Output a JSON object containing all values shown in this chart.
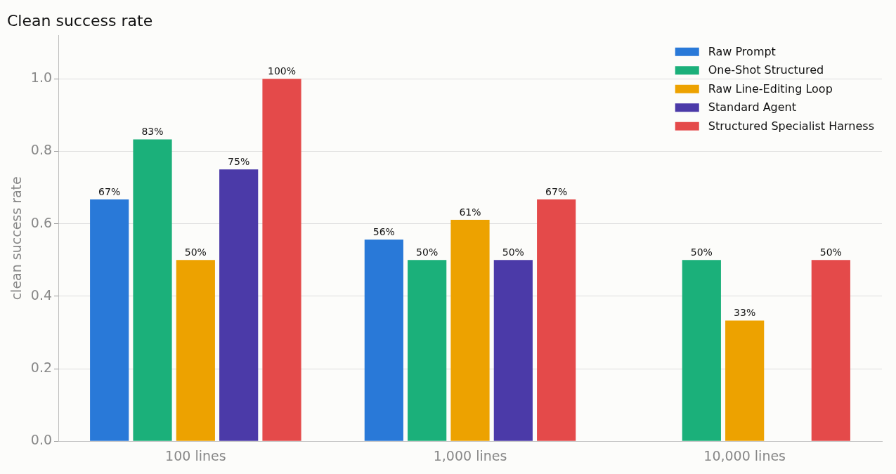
{
  "chart_data": {
    "type": "bar",
    "title": "Clean success rate",
    "ylabel": "clean success rate",
    "categories": [
      "100 lines",
      "1,000 lines",
      "10,000 lines"
    ],
    "series": [
      {
        "name": "Raw Prompt",
        "color": "#2979d8",
        "values": [
          0.667,
          0.556,
          null
        ],
        "value_labels": [
          "67%",
          "56%",
          null
        ]
      },
      {
        "name": "One-Shot Structured",
        "color": "#1bb07a",
        "values": [
          0.833,
          0.5,
          0.5
        ],
        "value_labels": [
          "83%",
          "50%",
          "50%"
        ]
      },
      {
        "name": "Raw Line-Editing Loop",
        "color": "#eda200",
        "values": [
          0.5,
          0.611,
          0.333
        ],
        "value_labels": [
          "50%",
          "61%",
          "33%"
        ]
      },
      {
        "name": "Standard Agent",
        "color": "#4b3aa8",
        "values": [
          0.75,
          0.5,
          null
        ],
        "value_labels": [
          "75%",
          "50%",
          null
        ]
      },
      {
        "name": "Structured Specialist Harness",
        "color": "#e44a4a",
        "values": [
          1.0,
          0.667,
          0.5
        ],
        "value_labels": [
          "100%",
          "67%",
          "50%"
        ]
      }
    ],
    "ylim": [
      0,
      1.12
    ],
    "yticks": [
      {
        "value": 0,
        "label": "0.0"
      },
      {
        "value": 0.2,
        "label": "0.2"
      },
      {
        "value": 0.4,
        "label": "0.4"
      },
      {
        "value": 0.6,
        "label": "0.6"
      },
      {
        "value": 0.8,
        "label": "0.8"
      },
      {
        "value": 1,
        "label": "1.0"
      }
    ],
    "grid": "y",
    "legend": "top right"
  }
}
